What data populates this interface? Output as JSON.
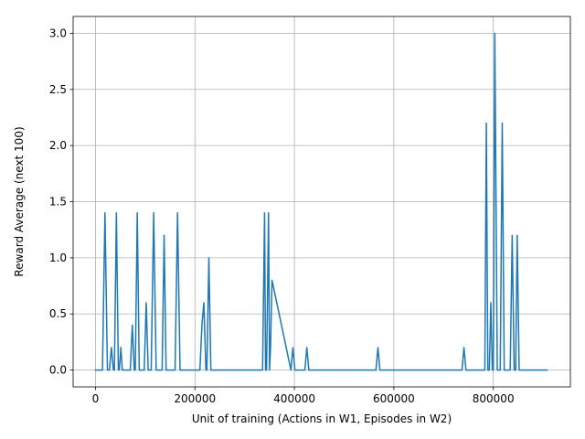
{
  "chart_data": {
    "type": "line",
    "title": "",
    "xlabel": "Unit of training (Actions in W1, Episodes in W2)",
    "ylabel": "Reward Average (next 100)",
    "xlim": [
      -45000,
      955000
    ],
    "ylim": [
      -0.15,
      3.15
    ],
    "xticks": [
      0,
      200000,
      400000,
      600000,
      800000
    ],
    "xtick_labels": [
      "0",
      "200000",
      "400000",
      "600000",
      "800000"
    ],
    "yticks": [
      0.0,
      0.5,
      1.0,
      1.5,
      2.0,
      2.5,
      3.0
    ],
    "ytick_labels": [
      "0.0",
      "0.5",
      "1.0",
      "1.5",
      "2.0",
      "2.5",
      "3.0"
    ],
    "grid": true,
    "line_color": "#1f77b4",
    "series": [
      {
        "x": [
          0,
          14000,
          19000,
          24000,
          28000,
          32000,
          36000,
          38000,
          42000,
          46000,
          48000,
          51000,
          54000,
          70000,
          74000,
          78000,
          80000,
          84000,
          88000,
          98000,
          102000,
          106000,
          112000,
          117000,
          122000,
          134000,
          138000,
          142000,
          160000,
          165000,
          170000,
          210000,
          214000,
          218000,
          222000,
          224000,
          228000,
          232000,
          336000,
          340000,
          342000,
          344000,
          348000,
          350000,
          352000,
          355000,
          393000,
          397000,
          401000,
          421000,
          425000,
          429000,
          564000,
          568000,
          572000,
          737000,
          741000,
          745000,
          783000,
          786000,
          789000,
          792000,
          795000,
          798000,
          800000,
          803000,
          808000,
          814000,
          818000,
          822000,
          834000,
          838000,
          842000,
          845000,
          848000,
          852000,
          908000
        ],
        "y": [
          0,
          0,
          1.4,
          0,
          0,
          0.2,
          0,
          0,
          1.4,
          0,
          0,
          0.2,
          0,
          0,
          0.4,
          0,
          0,
          1.4,
          0,
          0,
          0.6,
          0,
          0,
          1.4,
          0,
          0,
          1.2,
          0,
          0,
          1.4,
          0,
          0,
          0.4,
          0.6,
          0,
          0,
          1.0,
          0,
          0,
          1.4,
          0,
          0,
          1.4,
          0,
          0.2,
          0.8,
          0,
          0.2,
          0,
          0,
          0.2,
          0,
          0,
          0.2,
          0,
          0,
          0.2,
          0,
          0,
          2.2,
          0,
          0,
          0.6,
          0,
          0,
          3.0,
          0,
          0,
          2.2,
          0,
          0,
          1.2,
          0,
          0,
          1.2,
          0,
          0
        ]
      }
    ]
  }
}
